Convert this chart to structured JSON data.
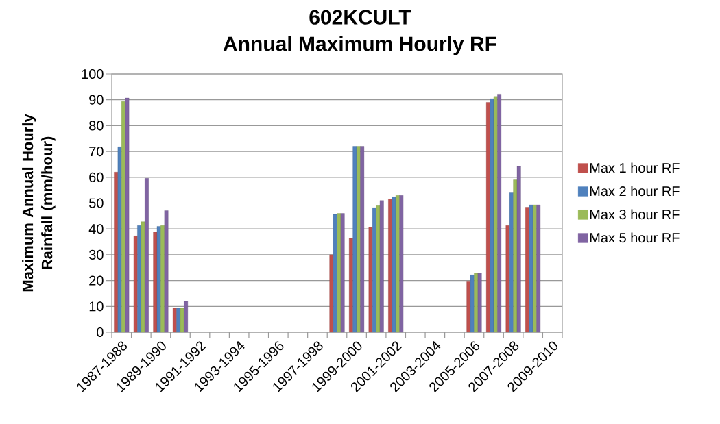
{
  "chart_data": {
    "type": "bar",
    "title": "602KCULT",
    "subtitle": "Annual Maximum Hourly RF",
    "ylabel": "Maximum Annual Hourly Rainfall (mm/hour)",
    "categories": [
      "1987-1988",
      null,
      "1989-1990",
      null,
      "1991-1992",
      null,
      "1993-1994",
      null,
      "1995-1996",
      null,
      "1997-1998",
      null,
      "1999-2000",
      null,
      "2001-2002",
      null,
      "2003-2004",
      null,
      "2005-2006",
      null,
      "2007-2008",
      null,
      "2009-2010"
    ],
    "series": [
      {
        "name": "Max 1 hour RF",
        "color": "#c0504d",
        "values": [
          62,
          37.3,
          38.8,
          9.3,
          null,
          null,
          null,
          null,
          null,
          null,
          null,
          30,
          36.4,
          40.7,
          51.6,
          null,
          null,
          null,
          19.8,
          89,
          41.3,
          48.4,
          null
        ]
      },
      {
        "name": "Max 2 hour RF",
        "color": "#4f81bd",
        "values": [
          71.8,
          41.3,
          41,
          9.3,
          null,
          null,
          null,
          null,
          null,
          null,
          null,
          45.6,
          72,
          48.2,
          52.4,
          null,
          null,
          null,
          22.2,
          90.4,
          54,
          49.3,
          null
        ]
      },
      {
        "name": "Max 3 hour RF",
        "color": "#9bbb59",
        "values": [
          89.3,
          42.8,
          41.3,
          9.3,
          null,
          null,
          null,
          null,
          null,
          null,
          null,
          46,
          72,
          49,
          53,
          null,
          null,
          null,
          22.8,
          91.3,
          59,
          49.3,
          null
        ]
      },
      {
        "name": "Max 5 hour RF",
        "color": "#8064a2",
        "values": [
          90.7,
          59.6,
          47.1,
          12,
          null,
          null,
          null,
          null,
          null,
          null,
          null,
          46,
          72,
          51,
          53,
          null,
          null,
          null,
          22.8,
          92.2,
          64.2,
          49.3,
          null
        ]
      }
    ],
    "ylim": [
      0,
      100
    ],
    "yticks": [
      0,
      10,
      20,
      30,
      40,
      50,
      60,
      70,
      80,
      90,
      100
    ],
    "grid": "y",
    "legend": "right"
  }
}
